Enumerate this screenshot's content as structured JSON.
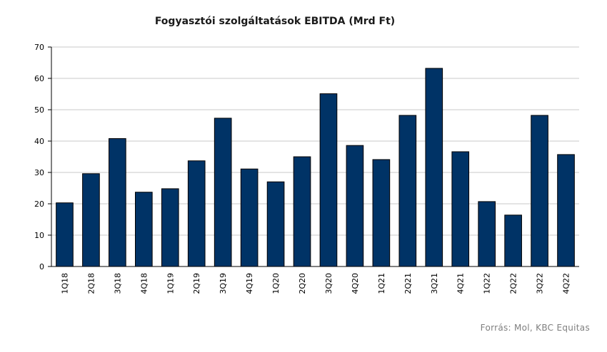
{
  "chart_data": {
    "type": "bar",
    "title": "Fogyasztói szolgáltatások EBITDA (Mrd Ft)",
    "categories": [
      "1Q18",
      "2Q18",
      "3Q18",
      "4Q18",
      "1Q19",
      "2Q19",
      "3Q19",
      "4Q19",
      "1Q20",
      "2Q20",
      "3Q20",
      "4Q20",
      "1Q21",
      "2Q21",
      "3Q21",
      "4Q21",
      "1Q22",
      "2Q22",
      "3Q22",
      "4Q22"
    ],
    "values": [
      20.3,
      29.6,
      40.8,
      23.7,
      24.8,
      33.7,
      47.3,
      31.1,
      27.0,
      35.0,
      55.1,
      38.6,
      34.1,
      48.2,
      63.2,
      36.6,
      20.7,
      16.4,
      48.2,
      35.7
    ],
    "ylim": [
      0,
      70
    ],
    "yticks": [
      0,
      10,
      20,
      30,
      40,
      50,
      60,
      70
    ],
    "grid": true,
    "bar_color": "#003366"
  },
  "source": "Forrás: Mol, KBC Equitas"
}
